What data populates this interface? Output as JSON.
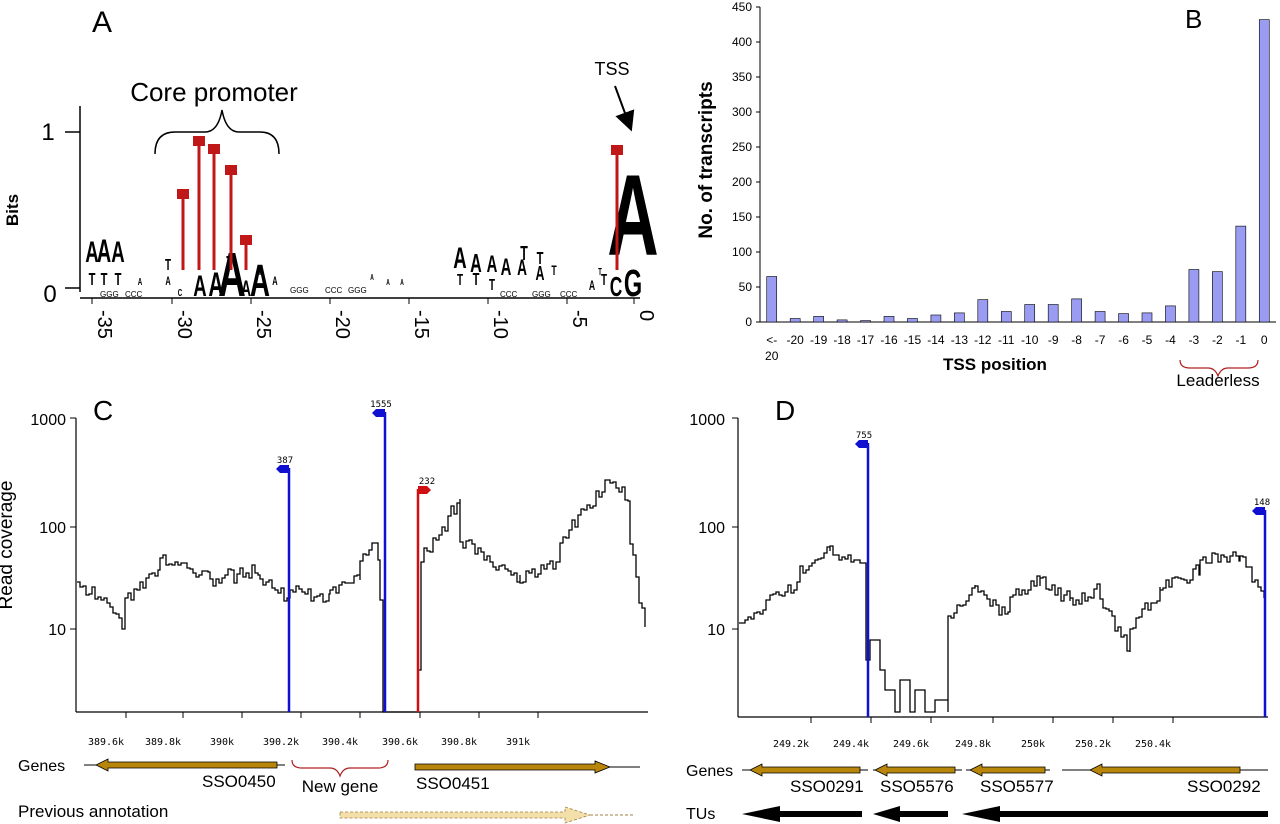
{
  "panels": {
    "a": "A",
    "b": "B",
    "c": "C",
    "d": "D"
  },
  "logo": {
    "ylabel": "Bits",
    "yticks": [
      "0",
      "1"
    ],
    "xticks": [
      "-35",
      "-30",
      "-25",
      "-20",
      "-15",
      "-10",
      "-5",
      "0"
    ],
    "core_promoter_label": "Core promoter",
    "tss_label": "TSS",
    "colors": {
      "A": "#7fcc3c",
      "T": "#cc2020",
      "C": "#2f2fd0",
      "G": "#f0a020"
    }
  },
  "chart_data": [
    {
      "type": "bar",
      "panel": "B",
      "title": "",
      "xlabel": "TSS position",
      "ylabel": "No. of transcripts",
      "categories": [
        "<-20",
        "-20",
        "-19",
        "-18",
        "-17",
        "-16",
        "-15",
        "-14",
        "-13",
        "-12",
        "-11",
        "-10",
        "-9",
        "-8",
        "-7",
        "-6",
        "-5",
        "-4",
        "-3",
        "-2",
        "-1",
        "0"
      ],
      "values": [
        65,
        5,
        8,
        3,
        2,
        8,
        5,
        10,
        13,
        32,
        15,
        25,
        25,
        33,
        15,
        12,
        13,
        23,
        75,
        72,
        137,
        432
      ],
      "ylim": [
        0,
        450
      ],
      "yticks": [
        "0",
        "50",
        "100",
        "150",
        "200",
        "250",
        "300",
        "350",
        "400",
        "450"
      ],
      "bar_color": "#9a9cf2",
      "annotation": "Leaderless"
    },
    {
      "type": "line",
      "panel": "C",
      "ylabel": "Read coverage",
      "yscale": "log",
      "yticks": [
        "10",
        "100",
        "1000"
      ],
      "xticks": [
        "389.6k",
        "389.8k",
        "390k",
        "390.2k",
        "390.4k",
        "390.6k",
        "390.8k",
        "391k"
      ],
      "tss_markers": [
        {
          "label": "387",
          "value": 387,
          "strand": "-",
          "color": "#1010d0"
        },
        {
          "label": "1555",
          "value": 1555,
          "strand": "-",
          "color": "#1010d0"
        },
        {
          "label": "232",
          "value": 232,
          "strand": "+",
          "color": "#d01010"
        }
      ],
      "genes_label": "Genes",
      "genes": [
        "SSO0450",
        "SSO0451"
      ],
      "new_gene_label": "New gene",
      "previous_annotation_label": "Previous annotation"
    },
    {
      "type": "line",
      "panel": "D",
      "yscale": "log",
      "yticks": [
        "10",
        "100",
        "1000"
      ],
      "xticks": [
        "249.2k",
        "249.4k",
        "249.6k",
        "249.8k",
        "250k",
        "250.2k",
        "250.4k"
      ],
      "tss_markers": [
        {
          "label": "755",
          "value": 755,
          "strand": "-",
          "color": "#1010d0"
        },
        {
          "label": "148",
          "value": 148,
          "strand": "-",
          "color": "#1010d0"
        }
      ],
      "genes_label": "Genes",
      "genes": [
        "SSO0291",
        "SSO5576",
        "SSO5577",
        "SSO0292"
      ],
      "tus_label": "TUs"
    }
  ]
}
